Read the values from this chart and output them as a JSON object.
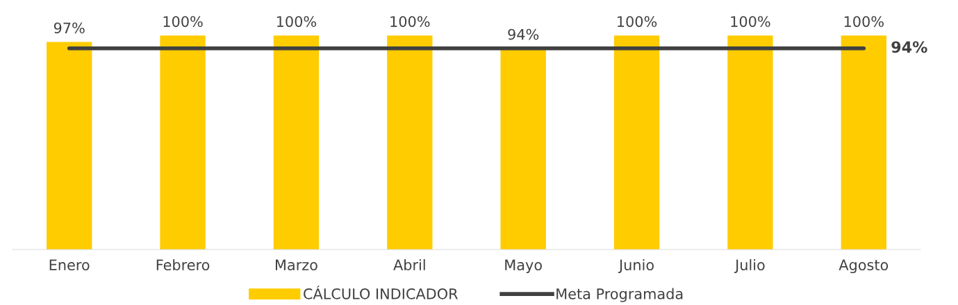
{
  "chart_data": {
    "type": "bar",
    "categories": [
      "Enero",
      "Febrero",
      "Marzo",
      "Abril",
      "Mayo",
      "Junio",
      "Julio",
      "Agosto"
    ],
    "series": [
      {
        "name": "CÁLCULO INDICADOR",
        "color": "#ffcc00",
        "values": [
          97,
          100,
          100,
          100,
          94,
          100,
          100,
          100
        ],
        "value_labels": [
          "97%",
          "100%",
          "100%",
          "100%",
          "94%",
          "100%",
          "100%",
          "100%"
        ]
      },
      {
        "name": "Meta Programada",
        "type": "line",
        "color": "#404040",
        "values": [
          94,
          94,
          94,
          94,
          94,
          94,
          94,
          94
        ],
        "value_labels": [
          null,
          null,
          null,
          null,
          null,
          null,
          null,
          "94%"
        ]
      }
    ],
    "tick_labels": "x",
    "grid": false,
    "legend": "bottom"
  }
}
